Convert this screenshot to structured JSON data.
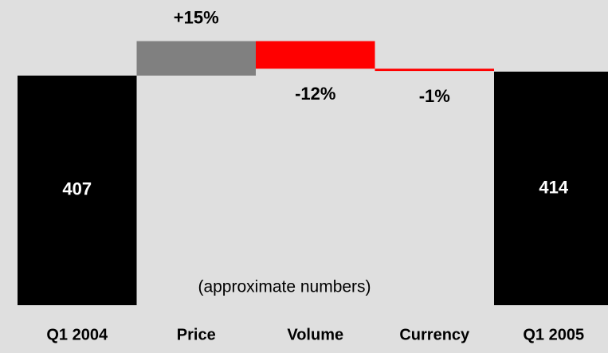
{
  "chart_data": {
    "type": "waterfall",
    "categories": [
      "Q1 2004",
      "Price",
      "Volume",
      "Currency",
      "Q1 2005"
    ],
    "values": [
      407,
      15,
      -12,
      -1,
      414
    ],
    "value_labels": [
      "407",
      "+15%",
      "-12%",
      "-1%",
      "414"
    ],
    "colors": [
      "#000000",
      "#808080",
      "#ff0000",
      "#ff0000",
      "#000000"
    ],
    "ylim": [
      0,
      500
    ],
    "annotation": "(approximate numbers)"
  }
}
